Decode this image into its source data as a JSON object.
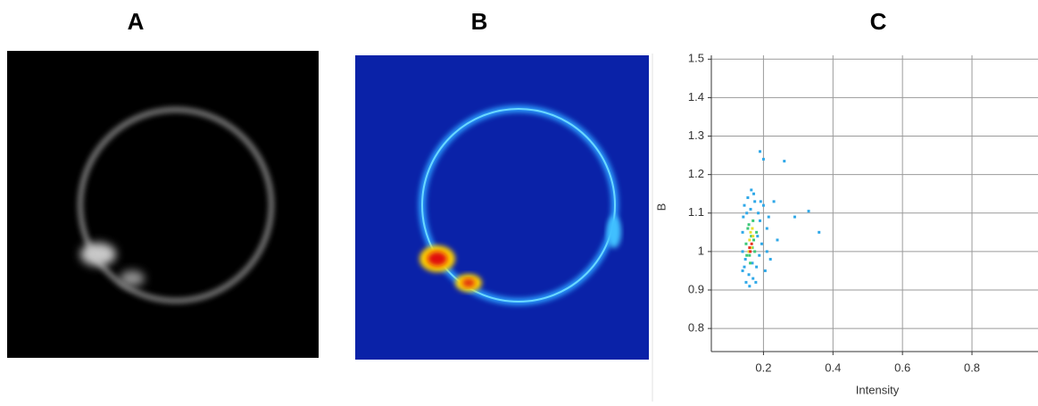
{
  "panel_labels": [
    "A",
    "B"
  ],
  "chart_data": {
    "type": "scatter",
    "title": "C",
    "x_label": "Intensity",
    "y_label": "B",
    "xlim": [
      0.05,
      0.99
    ],
    "ylim": [
      0.74,
      1.51
    ],
    "xticks": [
      0.2,
      0.4,
      0.6,
      0.8
    ],
    "yticks": [
      0.8,
      0.9,
      1,
      1.1,
      1.2,
      1.3,
      1.4,
      1.5
    ],
    "grid": true,
    "series": [
      {
        "color": "#2fa8e8",
        "x": [
          0.14,
          0.145,
          0.15,
          0.155,
          0.16,
          0.165,
          0.17,
          0.175,
          0.18,
          0.185,
          0.19,
          0.195,
          0.2,
          0.21,
          0.22,
          0.24,
          0.26,
          0.29,
          0.33,
          0.36,
          0.19,
          0.2,
          0.14,
          0.142,
          0.148,
          0.152,
          0.158,
          0.163,
          0.168,
          0.172,
          0.178,
          0.183,
          0.188,
          0.192,
          0.205,
          0.21,
          0.215,
          0.23,
          0.14,
          0.145
        ],
        "values": [
          0.95,
          1.12,
          0.92,
          1.14,
          0.91,
          1.16,
          0.93,
          1.13,
          0.96,
          1.1,
          1.08,
          1.02,
          1.12,
          1.06,
          0.98,
          1.03,
          1.235,
          1.09,
          1.105,
          1.05,
          1.26,
          1.24,
          1.05,
          1.09,
          0.98,
          1.1,
          0.94,
          1.11,
          0.97,
          1.15,
          0.92,
          1.04,
          0.99,
          1.13,
          0.95,
          1.0,
          1.09,
          1.13,
          1.0,
          0.96
        ]
      },
      {
        "color": "#3cc878",
        "x": [
          0.15,
          0.155,
          0.16,
          0.165,
          0.17,
          0.175,
          0.18,
          0.158,
          0.168,
          0.162,
          0.172,
          0.152
        ],
        "values": [
          1.02,
          1.06,
          0.99,
          1.04,
          1.08,
          1.0,
          1.05,
          1.07,
          1.01,
          0.97,
          1.03,
          0.99
        ]
      },
      {
        "color": "#e8e030",
        "x": [
          0.16,
          0.165,
          0.17,
          0.158,
          0.168,
          0.163
        ],
        "values": [
          1.03,
          1.01,
          1.04,
          1.0,
          1.06,
          1.05
        ]
      },
      {
        "color": "#e83020",
        "x": [
          0.162,
          0.166,
          0.16
        ],
        "values": [
          1.0,
          1.02,
          1.01
        ]
      }
    ]
  }
}
